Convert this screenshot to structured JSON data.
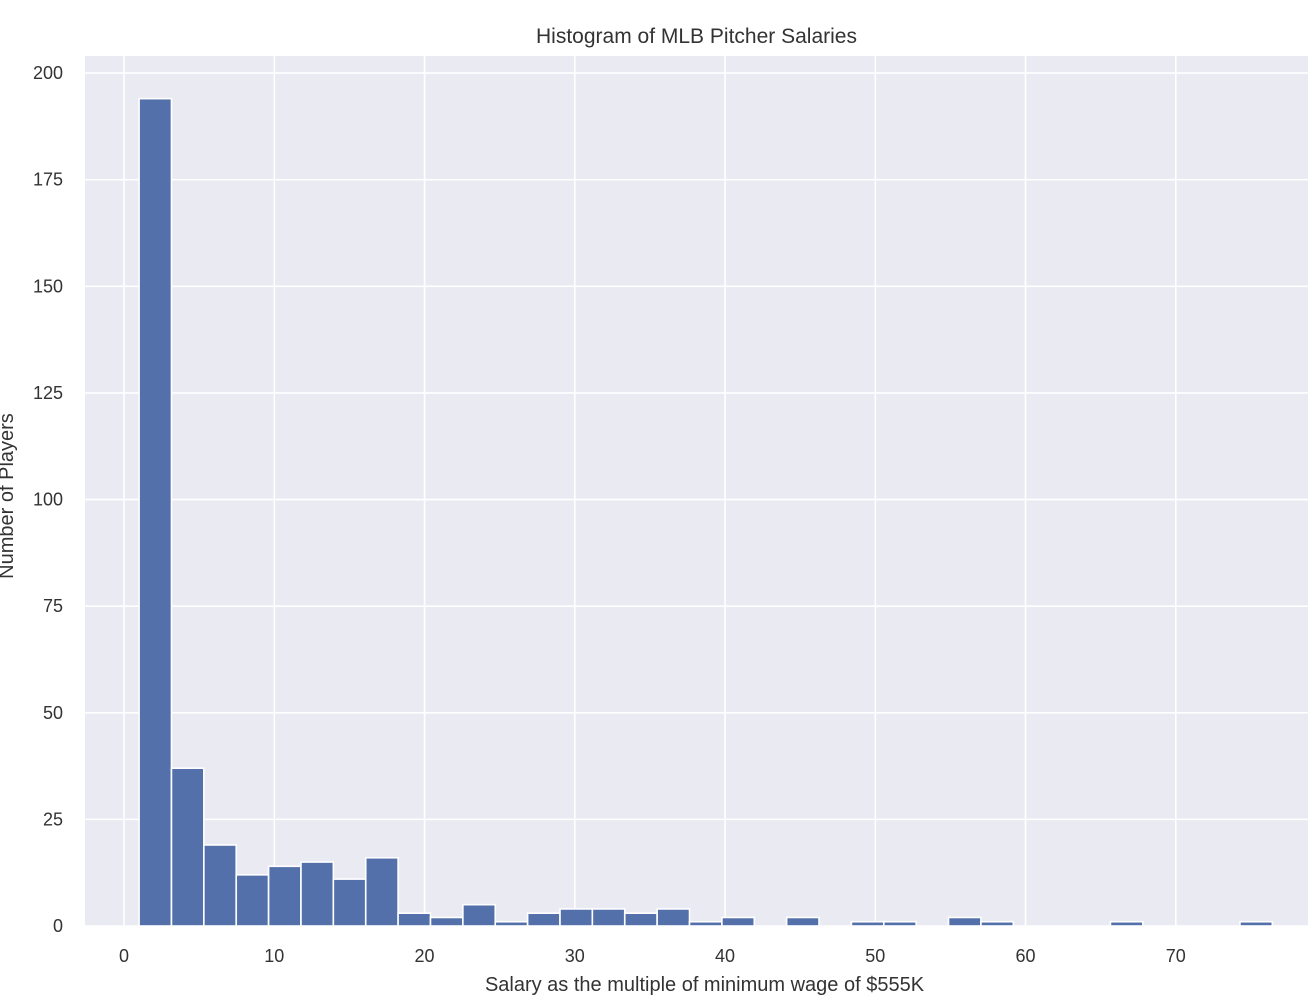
{
  "chart_data": {
    "type": "bar",
    "title": "Histogram of MLB Pitcher Salaries",
    "xlabel": "Salary as the multiple of minimum wage of $555K",
    "ylabel": "Number of Players",
    "xlim": [
      -2.6,
      78.8
    ],
    "ylim": [
      0,
      204
    ],
    "x_ticks": [
      0,
      10,
      20,
      30,
      40,
      50,
      60,
      70
    ],
    "y_ticks": [
      0,
      25,
      50,
      75,
      100,
      125,
      150,
      175,
      200
    ],
    "grid": true,
    "bin_start": 1.0,
    "bin_width": 2.155,
    "bin_counts": [
      194,
      37,
      19,
      12,
      14,
      15,
      11,
      16,
      3,
      2,
      5,
      1,
      3,
      4,
      4,
      3,
      4,
      1,
      2,
      0,
      2,
      0,
      1,
      1,
      0,
      2,
      1,
      0,
      0,
      0,
      1,
      0,
      0,
      0,
      1
    ],
    "colors": {
      "bar": "#5470ab",
      "plot_background": "#eaeaf2",
      "grid": "#ffffff",
      "text": "#333333"
    }
  }
}
